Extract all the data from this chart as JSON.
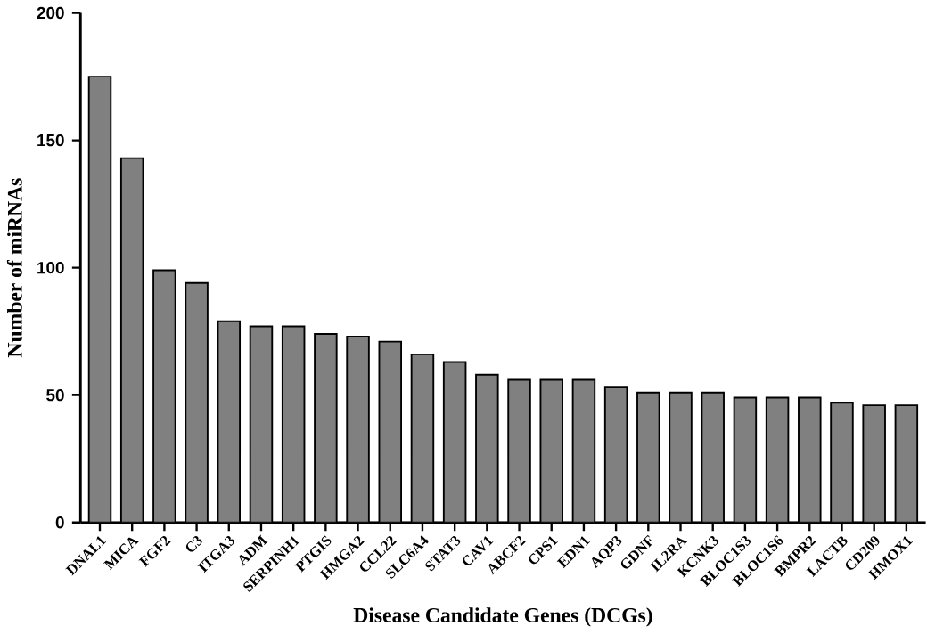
{
  "chart_data": {
    "type": "bar",
    "xlabel": "Disease Candidate Genes (DCGs)",
    "ylabel": "Number of miRNAs",
    "categories": [
      "DNAL1",
      "MICA",
      "FGF2",
      "C3",
      "ITGA3",
      "ADM",
      "SERPINH1",
      "PTGIS",
      "HMGA2",
      "CCL22",
      "SLC6A4",
      "STAT3",
      "CAV1",
      "ABCF2",
      "CPS1",
      "EDN1",
      "AQP3",
      "GDNF",
      "IL2RA",
      "KCNK3",
      "BLOC1S3",
      "BLOC1S6",
      "BMPR2",
      "LACTB",
      "CD209",
      "HMOX1"
    ],
    "values": [
      175,
      143,
      99,
      94,
      79,
      77,
      77,
      74,
      73,
      71,
      66,
      63,
      58,
      56,
      56,
      56,
      53,
      51,
      51,
      51,
      49,
      49,
      49,
      47,
      46,
      46
    ],
    "color": "#808080",
    "ylim": [
      0,
      200
    ],
    "yticks": [
      0,
      50,
      100,
      150,
      200
    ]
  }
}
